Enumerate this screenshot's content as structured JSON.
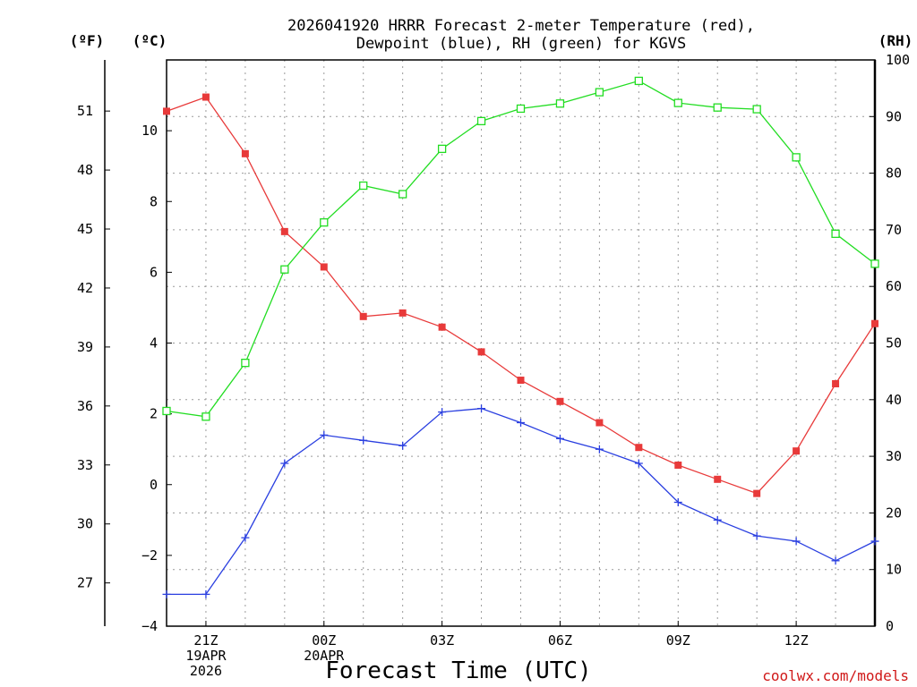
{
  "chart_data": {
    "type": "line",
    "title_line1": "2026041920 HRRR Forecast 2-meter Temperature (red),",
    "title_line2": "Dewpoint (blue), RH (green) for KGVS",
    "xlabel": "Forecast Time (UTC)",
    "credit": "coolwx.com/models",
    "units": {
      "fahrenheit": "(ºF)",
      "celsius": "(ºC)",
      "rh": "(RH)"
    },
    "x_hours": [
      20,
      21,
      22,
      23,
      24,
      25,
      26,
      27,
      28,
      29,
      30,
      31,
      32,
      33,
      34,
      35,
      36,
      37,
      38
    ],
    "xlim": [
      20,
      38
    ],
    "x_ticks": [
      {
        "hour": 21,
        "lines": [
          "21Z",
          "19APR",
          "2026"
        ]
      },
      {
        "hour": 24,
        "lines": [
          "00Z",
          "20APR"
        ]
      },
      {
        "hour": 27,
        "lines": [
          "03Z"
        ]
      },
      {
        "hour": 30,
        "lines": [
          "06Z"
        ]
      },
      {
        "hour": 33,
        "lines": [
          "09Z"
        ]
      },
      {
        "hour": 36,
        "lines": [
          "12Z"
        ]
      }
    ],
    "celsius_axis": {
      "min": -4,
      "max": 12,
      "ticks": [
        -4,
        -2,
        0,
        2,
        4,
        6,
        8,
        10
      ],
      "labels": [
        "−4",
        "−2",
        "0",
        "2",
        "4",
        "6",
        "8",
        "10"
      ]
    },
    "fahrenheit_ticks": [
      27,
      30,
      33,
      36,
      39,
      42,
      45,
      48,
      51
    ],
    "rh_axis": {
      "min": 0,
      "max": 100,
      "ticks": [
        0,
        10,
        20,
        30,
        40,
        50,
        60,
        70,
        80,
        90,
        100
      ]
    },
    "series": [
      {
        "name": "Temperature",
        "axis": "celsius",
        "color": "#e83a3a",
        "marker": "filled-square",
        "values": [
          10.55,
          10.95,
          9.35,
          7.15,
          6.15,
          4.75,
          4.85,
          4.45,
          3.75,
          2.95,
          2.35,
          1.75,
          1.05,
          0.55,
          0.15,
          -0.25,
          0.95,
          2.85,
          4.55
        ]
      },
      {
        "name": "Dewpoint",
        "axis": "celsius",
        "color": "#2a3fe0",
        "marker": "plus",
        "values": [
          -3.1,
          -3.1,
          -1.5,
          0.6,
          1.4,
          1.25,
          1.1,
          2.05,
          2.15,
          1.75,
          1.3,
          1.0,
          0.6,
          -0.5,
          -1.0,
          -1.45,
          -1.6,
          -2.15,
          -1.6
        ]
      },
      {
        "name": "RH",
        "axis": "rh",
        "color": "#22dd22",
        "marker": "open-square",
        "values": [
          38.0,
          37.0,
          46.5,
          63.0,
          71.3,
          77.8,
          76.3,
          84.3,
          89.2,
          91.4,
          92.3,
          94.3,
          96.3,
          92.4,
          91.6,
          91.3,
          82.8,
          69.3,
          64.0
        ]
      }
    ]
  }
}
